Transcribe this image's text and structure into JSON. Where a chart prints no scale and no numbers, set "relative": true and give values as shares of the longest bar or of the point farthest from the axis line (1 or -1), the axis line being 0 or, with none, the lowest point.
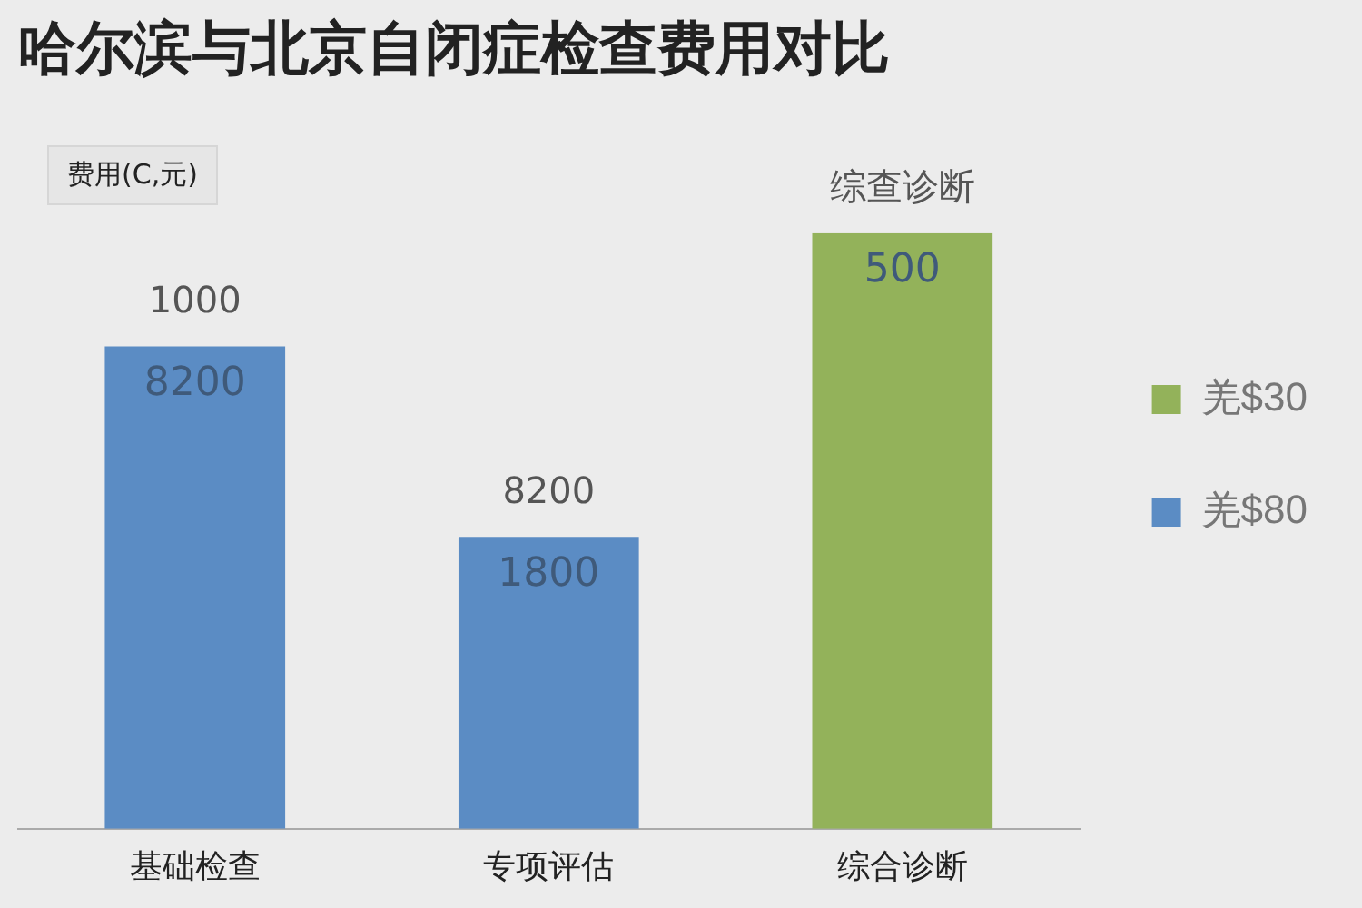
{
  "chart_data": {
    "type": "bar",
    "title": "哈尔滨与北京自闭症检查费用对比",
    "ylabel": "费用(C,元)",
    "relative": true,
    "categories": [
      "基础检查",
      "专项评估",
      "综合诊断"
    ],
    "series": [
      {
        "name": "羌$30",
        "color": "#93b25a",
        "values": [
          null,
          null,
          1
        ]
      },
      {
        "name": "羌$80",
        "color": "#5b8cc4",
        "values": [
          0.81,
          0.49,
          null
        ]
      }
    ],
    "annotations": [
      "1000",
      "8200",
      "综查诊断",
      "8200",
      "1800",
      "500"
    ],
    "legend": "right",
    "grid": false
  }
}
